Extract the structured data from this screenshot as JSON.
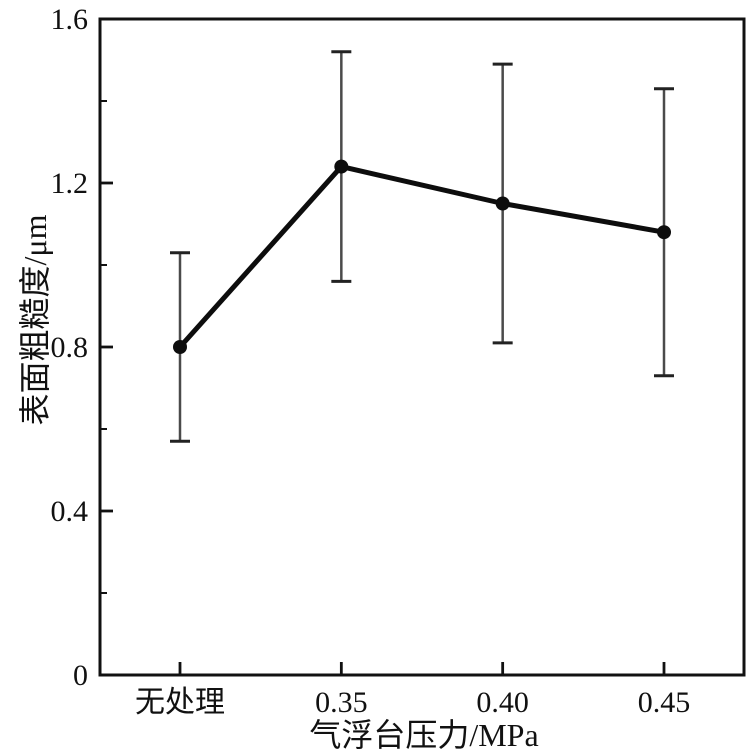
{
  "figure": {
    "background_color": "#ffffff",
    "description_labels": {
      "x_axis_title": "气浮台压力/MPa",
      "y_axis_title": "表面粗糙度/μm"
    }
  },
  "chart_data": {
    "type": "line",
    "title": "",
    "xlabel": "气浮台压力/MPa",
    "ylabel": "表面粗糙度/μm",
    "categories": [
      "无处理",
      "0.35",
      "0.40",
      "0.45"
    ],
    "series": [
      {
        "name": "表面粗糙度",
        "values": [
          0.8,
          1.24,
          1.15,
          1.08
        ],
        "error_low": [
          0.57,
          0.96,
          0.81,
          0.73
        ],
        "error_high": [
          1.03,
          1.52,
          1.49,
          1.43
        ],
        "marker": "filled-circle",
        "line_color": "#0d0d0d",
        "marker_color": "#0d0d0d",
        "error_bar_color": "#4a4a4a"
      }
    ],
    "ylim": [
      0,
      1.6
    ],
    "y_major_ticks": [
      0,
      0.4,
      0.8,
      1.2,
      1.6
    ],
    "y_tick_labels": [
      "0",
      "0.4",
      "0.8",
      "1.2",
      "1.6"
    ],
    "y_minor_ticks": [
      0.2,
      0.6,
      1.0,
      1.4
    ],
    "grid": false,
    "legend_position": "none",
    "frame": "full-box",
    "tick_direction": "in",
    "axis_color": "#111111"
  }
}
